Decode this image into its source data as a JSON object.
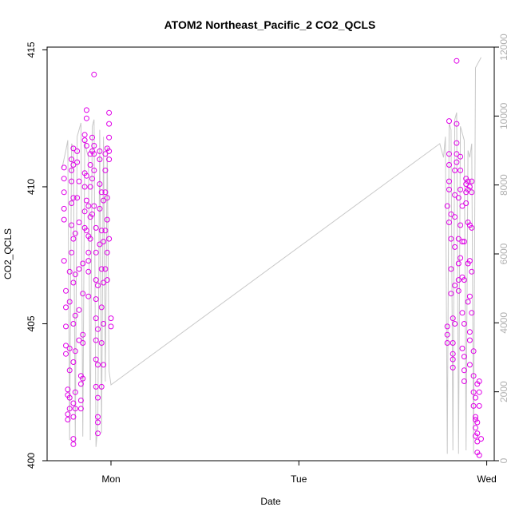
{
  "chart_data": {
    "type": "scatter",
    "title": "ATOM2 Northeast_Pacific_2 CO2_QCLS",
    "xlabel": "Date",
    "ylabel": "CO2_QCLS",
    "x_tick_labels": [
      "Mon",
      "Tue",
      "Wed"
    ],
    "x_range_days": [
      -0.34,
      2.04
    ],
    "y_left": {
      "range": [
        400,
        415.1
      ],
      "ticks": [
        400,
        405,
        410,
        415
      ]
    },
    "y_right": {
      "range": [
        0,
        12000
      ],
      "ticks": [
        0,
        2000,
        4000,
        6000,
        8000,
        10000,
        12000
      ]
    },
    "grid": false,
    "legend": "none",
    "series": [
      {
        "kind": "points",
        "color": "#e000e8",
        "points": [
          [
            -0.25,
            410.7
          ],
          [
            -0.25,
            410.3
          ],
          [
            -0.25,
            409.8
          ],
          [
            -0.25,
            409.2
          ],
          [
            -0.25,
            408.8
          ],
          [
            -0.25,
            407.3
          ],
          [
            -0.24,
            406.2
          ],
          [
            -0.24,
            405.6
          ],
          [
            -0.24,
            404.9
          ],
          [
            -0.24,
            404.2
          ],
          [
            -0.24,
            403.9
          ],
          [
            -0.23,
            402.6
          ],
          [
            -0.23,
            402.4
          ],
          [
            -0.23,
            401.7
          ],
          [
            -0.23,
            401.5
          ],
          [
            -0.22,
            401.9
          ],
          [
            -0.22,
            402.3
          ],
          [
            -0.22,
            403.3
          ],
          [
            -0.22,
            404.1
          ],
          [
            -0.22,
            405.8
          ],
          [
            -0.22,
            406.9
          ],
          [
            -0.21,
            407.6
          ],
          [
            -0.21,
            408.6
          ],
          [
            -0.21,
            409.4
          ],
          [
            -0.21,
            410.2
          ],
          [
            -0.21,
            410.6
          ],
          [
            -0.21,
            411.0
          ],
          [
            -0.2,
            411.4
          ],
          [
            -0.2,
            410.8
          ],
          [
            -0.2,
            409.6
          ],
          [
            -0.2,
            408.1
          ],
          [
            -0.2,
            406.5
          ],
          [
            -0.2,
            405.0
          ],
          [
            -0.2,
            403.6
          ],
          [
            -0.2,
            402.1
          ],
          [
            -0.2,
            401.6
          ],
          [
            -0.2,
            400.8
          ],
          [
            -0.2,
            400.6
          ],
          [
            -0.19,
            401.9
          ],
          [
            -0.19,
            402.5
          ],
          [
            -0.19,
            404.0
          ],
          [
            -0.19,
            405.3
          ],
          [
            -0.19,
            406.8
          ],
          [
            -0.19,
            408.3
          ],
          [
            -0.18,
            409.6
          ],
          [
            -0.18,
            410.9
          ],
          [
            -0.18,
            411.3
          ],
          [
            -0.17,
            410.2
          ],
          [
            -0.17,
            408.7
          ],
          [
            -0.17,
            407.0
          ],
          [
            -0.17,
            405.5
          ],
          [
            -0.17,
            404.4
          ],
          [
            -0.16,
            402.2
          ],
          [
            -0.16,
            401.9
          ],
          [
            -0.16,
            402.8
          ],
          [
            -0.16,
            403.1
          ],
          [
            -0.15,
            403.0
          ],
          [
            -0.15,
            404.3
          ],
          [
            -0.15,
            404.6
          ],
          [
            -0.15,
            406.1
          ],
          [
            -0.15,
            407.2
          ],
          [
            -0.14,
            408.5
          ],
          [
            -0.14,
            409.1
          ],
          [
            -0.14,
            410.0
          ],
          [
            -0.14,
            410.5
          ],
          [
            -0.14,
            411.7
          ],
          [
            -0.14,
            411.9
          ],
          [
            -0.13,
            412.8
          ],
          [
            -0.13,
            412.5
          ],
          [
            -0.13,
            411.5
          ],
          [
            -0.13,
            410.4
          ],
          [
            -0.13,
            409.5
          ],
          [
            -0.13,
            408.4
          ],
          [
            -0.12,
            407.6
          ],
          [
            -0.12,
            406.9
          ],
          [
            -0.12,
            406.0
          ],
          [
            -0.12,
            407.3
          ],
          [
            -0.12,
            408.2
          ],
          [
            -0.12,
            409.3
          ],
          [
            -0.11,
            410.8
          ],
          [
            -0.11,
            411.2
          ],
          [
            -0.11,
            410.0
          ],
          [
            -0.11,
            408.9
          ],
          [
            -0.11,
            408.1
          ],
          [
            -0.1,
            409.0
          ],
          [
            -0.1,
            410.3
          ],
          [
            -0.1,
            411.3
          ],
          [
            -0.1,
            411.8
          ],
          [
            -0.09,
            411.5
          ],
          [
            -0.09,
            411.2
          ],
          [
            -0.09,
            414.1
          ],
          [
            -0.09,
            410.6
          ],
          [
            -0.09,
            409.3
          ],
          [
            -0.08,
            408.5
          ],
          [
            -0.08,
            407.6
          ],
          [
            -0.08,
            406.6
          ],
          [
            -0.08,
            405.9
          ],
          [
            -0.08,
            405.2
          ],
          [
            -0.08,
            404.4
          ],
          [
            -0.08,
            403.7
          ],
          [
            -0.08,
            402.7
          ],
          [
            -0.07,
            401.4
          ],
          [
            -0.07,
            401.0
          ],
          [
            -0.07,
            401.6
          ],
          [
            -0.07,
            402.3
          ],
          [
            -0.07,
            403.5
          ],
          [
            -0.07,
            404.8
          ],
          [
            -0.07,
            406.4
          ],
          [
            -0.06,
            407.9
          ],
          [
            -0.06,
            409.2
          ],
          [
            -0.06,
            410.1
          ],
          [
            -0.06,
            411.3
          ],
          [
            -0.06,
            411.0
          ],
          [
            -0.05,
            409.8
          ],
          [
            -0.05,
            408.4
          ],
          [
            -0.05,
            407.0
          ],
          [
            -0.05,
            405.6
          ],
          [
            -0.05,
            404.3
          ],
          [
            -0.05,
            402.7
          ],
          [
            -0.04,
            403.5
          ],
          [
            -0.04,
            405.0
          ],
          [
            -0.04,
            406.5
          ],
          [
            -0.04,
            408.0
          ],
          [
            -0.04,
            409.5
          ],
          [
            -0.03,
            410.6
          ],
          [
            -0.03,
            411.2
          ],
          [
            -0.03,
            409.8
          ],
          [
            -0.03,
            408.4
          ],
          [
            -0.03,
            407.0
          ],
          [
            -0.02,
            406.6
          ],
          [
            -0.02,
            407.6
          ],
          [
            -0.02,
            408.8
          ],
          [
            -0.02,
            409.6
          ],
          [
            -0.02,
            411.4
          ],
          [
            -0.01,
            411.8
          ],
          [
            -0.01,
            411.3
          ],
          [
            -0.01,
            411.0
          ],
          [
            -0.01,
            412.3
          ],
          [
            -0.01,
            412.7
          ],
          [
            -0.01,
            408.1
          ],
          [
            0.0,
            405.2
          ],
          [
            0.0,
            404.9
          ],
          [
            1.79,
            404.9
          ],
          [
            1.79,
            404.6
          ],
          [
            1.79,
            404.3
          ],
          [
            1.79,
            409.3
          ],
          [
            1.8,
            408.7
          ],
          [
            1.8,
            410.2
          ],
          [
            1.8,
            411.2
          ],
          [
            1.8,
            412.4
          ],
          [
            1.8,
            410.8
          ],
          [
            1.8,
            409.9
          ],
          [
            1.81,
            409.0
          ],
          [
            1.81,
            408.1
          ],
          [
            1.81,
            407.0
          ],
          [
            1.81,
            406.1
          ],
          [
            1.82,
            405.2
          ],
          [
            1.82,
            404.3
          ],
          [
            1.82,
            403.7
          ],
          [
            1.82,
            403.4
          ],
          [
            1.82,
            403.9
          ],
          [
            1.83,
            405.0
          ],
          [
            1.83,
            406.4
          ],
          [
            1.83,
            407.8
          ],
          [
            1.83,
            408.9
          ],
          [
            1.83,
            409.7
          ],
          [
            1.83,
            410.6
          ],
          [
            1.84,
            411.2
          ],
          [
            1.84,
            411.6
          ],
          [
            1.84,
            414.6
          ],
          [
            1.84,
            412.3
          ],
          [
            1.84,
            410.9
          ],
          [
            1.85,
            409.6
          ],
          [
            1.85,
            408.1
          ],
          [
            1.85,
            407.2
          ],
          [
            1.85,
            406.6
          ],
          [
            1.85,
            406.2
          ],
          [
            1.86,
            407.4
          ],
          [
            1.86,
            408.6
          ],
          [
            1.86,
            409.9
          ],
          [
            1.86,
            411.1
          ],
          [
            1.86,
            410.6
          ],
          [
            1.87,
            409.3
          ],
          [
            1.87,
            408.0
          ],
          [
            1.87,
            406.7
          ],
          [
            1.87,
            405.4
          ],
          [
            1.87,
            404.1
          ],
          [
            1.88,
            403.3
          ],
          [
            1.88,
            402.9
          ],
          [
            1.88,
            403.8
          ],
          [
            1.88,
            405.0
          ],
          [
            1.88,
            406.6
          ],
          [
            1.88,
            408.0
          ],
          [
            1.89,
            409.4
          ],
          [
            1.89,
            410.3
          ],
          [
            1.89,
            410.1
          ],
          [
            1.89,
            409.8
          ],
          [
            1.9,
            410.2
          ],
          [
            1.9,
            409.9
          ],
          [
            1.9,
            408.7
          ],
          [
            1.9,
            407.2
          ],
          [
            1.9,
            405.8
          ],
          [
            1.91,
            404.4
          ],
          [
            1.91,
            403.5
          ],
          [
            1.91,
            404.7
          ],
          [
            1.91,
            406.0
          ],
          [
            1.91,
            407.3
          ],
          [
            1.91,
            408.6
          ],
          [
            1.91,
            410.0
          ],
          [
            1.92,
            410.2
          ],
          [
            1.92,
            409.8
          ],
          [
            1.92,
            408.5
          ],
          [
            1.92,
            406.9
          ],
          [
            1.92,
            405.4
          ],
          [
            1.93,
            404.0
          ],
          [
            1.93,
            403.1
          ],
          [
            1.93,
            402.5
          ],
          [
            1.93,
            402.0
          ],
          [
            1.94,
            401.5
          ],
          [
            1.94,
            401.2
          ],
          [
            1.94,
            400.9
          ],
          [
            1.94,
            401.6
          ],
          [
            1.94,
            402.3
          ],
          [
            1.95,
            402.8
          ],
          [
            1.95,
            401.0
          ],
          [
            1.95,
            400.3
          ],
          [
            1.95,
            400.7
          ],
          [
            1.95,
            401.4
          ],
          [
            1.96,
            402.0
          ],
          [
            1.96,
            402.5
          ],
          [
            1.96,
            402.9
          ],
          [
            1.96,
            400.2
          ],
          [
            1.97,
            400.8
          ]
        ]
      },
      {
        "kind": "line",
        "axis": "right",
        "color": "#c8c8c8",
        "points": [
          [
            -0.26,
            8500
          ],
          [
            -0.24,
            9000
          ],
          [
            -0.23,
            9300
          ],
          [
            -0.22,
            600
          ],
          [
            -0.21,
            9200
          ],
          [
            -0.2,
            9100
          ],
          [
            -0.19,
            500
          ],
          [
            -0.18,
            9400
          ],
          [
            -0.17,
            9600
          ],
          [
            -0.16,
            9800
          ],
          [
            -0.15,
            700
          ],
          [
            -0.14,
            9300
          ],
          [
            -0.13,
            9000
          ],
          [
            -0.12,
            8800
          ],
          [
            -0.11,
            600
          ],
          [
            -0.1,
            9700
          ],
          [
            -0.09,
            9900
          ],
          [
            -0.08,
            400
          ],
          [
            -0.07,
            1000
          ],
          [
            -0.06,
            9600
          ],
          [
            -0.05,
            800
          ],
          [
            -0.04,
            9400
          ],
          [
            -0.03,
            2300
          ],
          [
            -0.02,
            9100
          ],
          [
            -0.01,
            2600
          ],
          [
            0.0,
            2200
          ],
          [
            1.75,
            9200
          ],
          [
            1.76,
            9000
          ],
          [
            1.77,
            8800
          ],
          [
            1.78,
            9400
          ],
          [
            1.79,
            200
          ],
          [
            1.8,
            9800
          ],
          [
            1.81,
            9600
          ],
          [
            1.82,
            300
          ],
          [
            1.83,
            9900
          ],
          [
            1.84,
            10100
          ],
          [
            1.85,
            200
          ],
          [
            1.86,
            9700
          ],
          [
            1.87,
            9500
          ],
          [
            1.88,
            9300
          ],
          [
            1.89,
            300
          ],
          [
            1.9,
            9000
          ],
          [
            1.91,
            8800
          ],
          [
            1.92,
            9200
          ],
          [
            1.93,
            200
          ],
          [
            1.94,
            11400
          ],
          [
            1.95,
            11500
          ],
          [
            1.96,
            11600
          ],
          [
            1.97,
            11700
          ]
        ]
      }
    ]
  }
}
